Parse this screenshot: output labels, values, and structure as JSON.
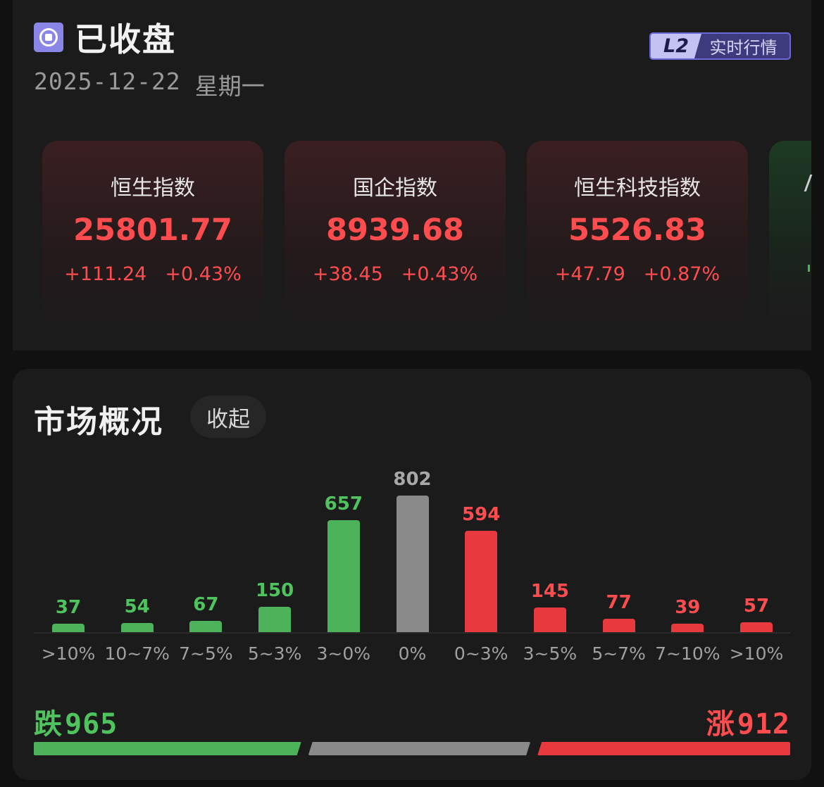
{
  "header": {
    "status_title": "已收盘",
    "date": "2025-12-22",
    "weekday": "星期一",
    "badge_level": "L2",
    "badge_label": "实时行情"
  },
  "indices": [
    {
      "name": "恒生指数",
      "value": "25801.77",
      "change": "+111.24",
      "pct": "+0.43%"
    },
    {
      "name": "国企指数",
      "value": "8939.68",
      "change": "+38.45",
      "pct": "+0.43%"
    },
    {
      "name": "恒生科技指数",
      "value": "5526.83",
      "change": "+47.79",
      "pct": "+0.87%"
    }
  ],
  "market_overview": {
    "title": "市场概况",
    "collapse_label": "收起",
    "down_label": "跌",
    "down_count": "965",
    "up_label": "涨",
    "up_count": "912"
  },
  "colors": {
    "down": "#4db35b",
    "flat": "#8a8a8a",
    "up": "#e8393f",
    "down_text": "#4fc45e",
    "up_text": "#ff4d4f",
    "flat_text": "#a8a8a8"
  },
  "chart_data": {
    "type": "bar",
    "categories": [
      ">10%",
      "10~7%",
      "7~5%",
      "5~3%",
      "3~0%",
      "0%",
      "0~3%",
      "3~5%",
      "5~7%",
      "7~10%",
      ">10%"
    ],
    "values": [
      37,
      54,
      67,
      150,
      657,
      802,
      594,
      145,
      77,
      39,
      57
    ],
    "directions": [
      "down",
      "down",
      "down",
      "down",
      "down",
      "flat",
      "up",
      "up",
      "up",
      "up",
      "up"
    ]
  }
}
